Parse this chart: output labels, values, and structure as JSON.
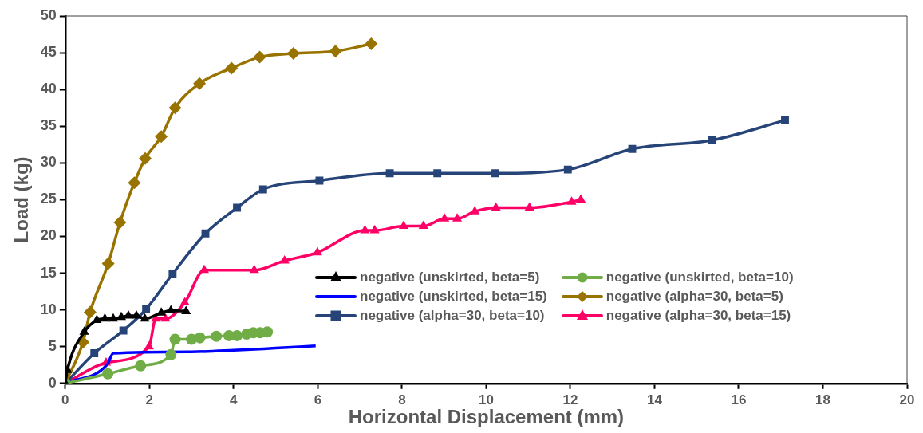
{
  "chart_data": {
    "type": "line",
    "xlabel": "Horizontal Displacement (mm)",
    "ylabel": "Load (kg)",
    "xlim": [
      0,
      20
    ],
    "xticks": [
      0,
      2,
      4,
      6,
      8,
      10,
      12,
      14,
      16,
      18,
      20
    ],
    "ylim": [
      0,
      50
    ],
    "yticks": [
      0,
      5,
      10,
      15,
      20,
      25,
      30,
      35,
      40,
      45,
      50
    ],
    "grid": false,
    "legend": "bottom right",
    "series": [
      {
        "name": "negative (unskirted, beta=5)",
        "color": "#000000",
        "marker": "triangle",
        "x": [
          0,
          0.05,
          0.45,
          0.75,
          0.94,
          1.14,
          1.33,
          1.5,
          1.69,
          1.89,
          2.28,
          2.51,
          2.87
        ],
        "values": [
          0,
          1.8,
          7.0,
          8.6,
          8.8,
          8.8,
          9.0,
          9.2,
          9.2,
          8.8,
          9.6,
          9.9,
          9.8
        ]
      },
      {
        "name": "negative (unskirted, beta=10)",
        "color": "#70ad47",
        "marker": "circle",
        "x": [
          0,
          1.01,
          1.79,
          2.51,
          2.61,
          3.0,
          3.2,
          3.59,
          3.89,
          4.08,
          4.31,
          4.47,
          4.63,
          4.8
        ],
        "values": [
          0,
          1.3,
          2.4,
          3.9,
          6.0,
          6.0,
          6.2,
          6.4,
          6.5,
          6.5,
          6.7,
          6.9,
          6.9,
          7.0
        ]
      },
      {
        "name": "negative (unskirted, beta=15)",
        "color": "#0000ff",
        "marker": "none",
        "x": [
          0,
          1.0,
          1.14,
          3.0,
          4.0,
          5.0,
          5.95
        ],
        "values": [
          0,
          2.6,
          4.1,
          4.3,
          4.5,
          4.8,
          5.1
        ]
      },
      {
        "name": "negative (alpha=30, beta=5)",
        "color": "#997300",
        "marker": "diamond",
        "x": [
          0,
          0.42,
          0.59,
          1.02,
          1.3,
          1.64,
          1.9,
          2.28,
          2.61,
          3.19,
          3.95,
          4.62,
          5.42,
          6.42,
          7.27
        ],
        "values": [
          0,
          5.6,
          9.7,
          16.3,
          21.9,
          27.3,
          30.6,
          33.6,
          37.5,
          40.8,
          42.9,
          44.4,
          44.9,
          45.2,
          46.2
        ]
      },
      {
        "name": "negative (alpha=30, beta=10)",
        "color": "#264478",
        "marker": "square",
        "x": [
          0,
          0.69,
          1.38,
          1.92,
          2.55,
          3.33,
          4.08,
          4.7,
          6.04,
          7.71,
          8.84,
          10.22,
          11.94,
          13.47,
          15.37,
          17.1
        ],
        "values": [
          0,
          4.1,
          7.2,
          10.1,
          14.9,
          20.4,
          23.9,
          26.4,
          27.6,
          28.6,
          28.6,
          28.6,
          29.1,
          31.9,
          33.1,
          35.8
        ]
      },
      {
        "name": "negative (alpha=30, beta=15)",
        "color": "#ff0066",
        "marker": "triangle",
        "x": [
          0,
          0.97,
          1.99,
          2.15,
          2.38,
          2.84,
          3.3,
          4.49,
          5.21,
          5.99,
          7.12,
          7.35,
          8.04,
          8.51,
          9.01,
          9.31,
          9.73,
          10.23,
          11.03,
          12.03,
          12.25
        ],
        "values": [
          0,
          2.8,
          5.0,
          8.8,
          8.8,
          11.0,
          15.4,
          15.4,
          16.7,
          17.8,
          20.8,
          20.8,
          21.4,
          21.4,
          22.4,
          22.4,
          23.4,
          23.9,
          23.9,
          24.7,
          25.0
        ]
      }
    ]
  }
}
